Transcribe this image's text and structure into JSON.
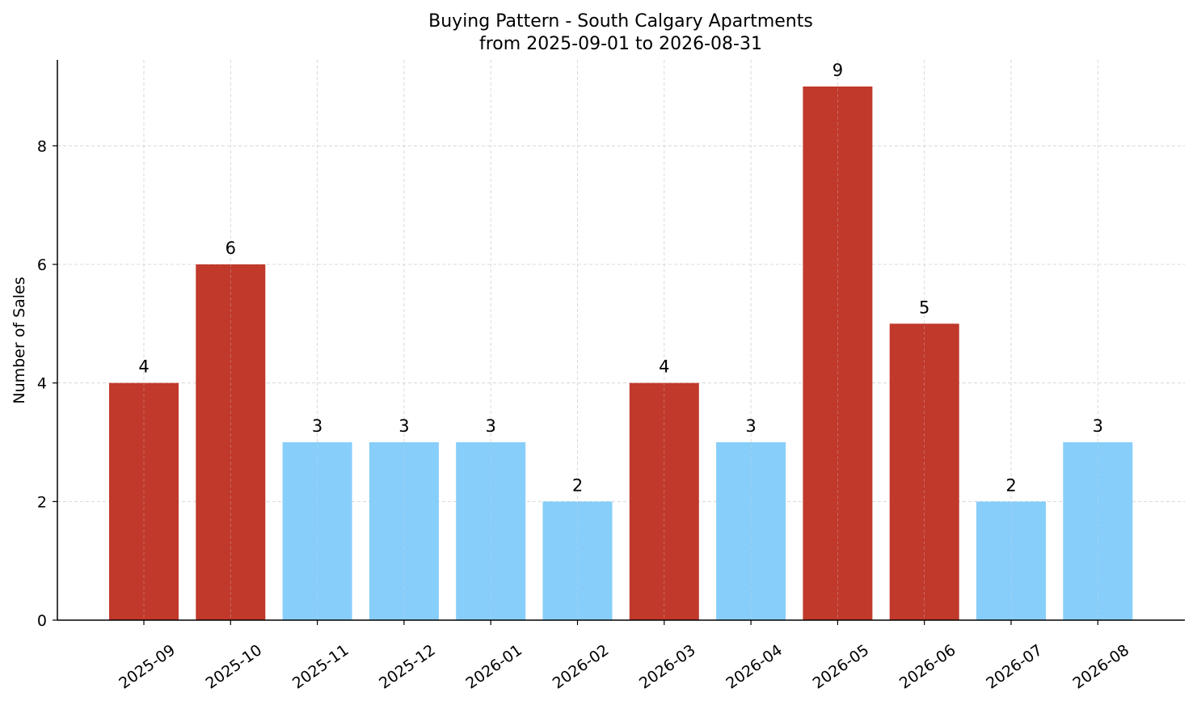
{
  "chart_data": {
    "type": "bar",
    "title": "Buying Pattern - South Calgary Apartments",
    "subtitle": "from 2025-09-01 to 2026-08-31",
    "xlabel": "",
    "ylabel": "Number of Sales",
    "categories": [
      "2025-09",
      "2025-10",
      "2025-11",
      "2025-12",
      "2026-01",
      "2026-02",
      "2026-03",
      "2026-04",
      "2026-05",
      "2026-06",
      "2026-07",
      "2026-08"
    ],
    "values": [
      4,
      6,
      3,
      3,
      3,
      2,
      4,
      3,
      9,
      5,
      2,
      3
    ],
    "ylim": [
      0,
      9.45
    ],
    "yticks": [
      0,
      2,
      4,
      6,
      8
    ],
    "grid": true,
    "colors": {
      "high": "#c0392b",
      "low": "#87cefa"
    },
    "highlight_threshold": 4
  }
}
